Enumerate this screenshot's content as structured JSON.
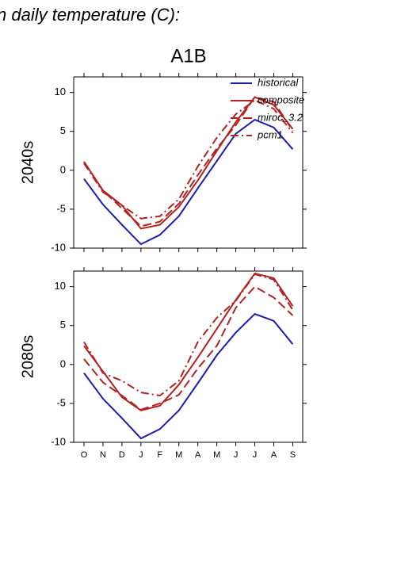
{
  "title": "n daily temperature (C):",
  "subtitle": "A1B",
  "chart_data": [
    {
      "type": "line",
      "ylabel": "2040s",
      "ylim": [
        -10,
        12
      ],
      "yticks": [
        -10,
        -5,
        0,
        5,
        10
      ],
      "legend": "upper right",
      "series": [
        {
          "name": "historical",
          "color": "#1c1cb0",
          "dash": "solid",
          "values": [
            -1.1,
            -4.4,
            -7.0,
            -9.5,
            -8.3,
            -5.9,
            -2.3,
            1.2,
            4.7,
            6.5,
            5.5,
            2.7
          ]
        },
        {
          "name": "composite",
          "color": "#b22222",
          "dash": "solid",
          "values": [
            1.1,
            -2.6,
            -4.5,
            -7.5,
            -7.0,
            -4.7,
            -1.3,
            2.5,
            6.2,
            9.4,
            8.4,
            5.3
          ]
        },
        {
          "name": "miroc_3.2",
          "color": "#b22222",
          "dash": "long",
          "values": [
            1.1,
            -2.6,
            -4.9,
            -7.2,
            -6.6,
            -4.3,
            -0.6,
            2.8,
            5.8,
            9.4,
            8.8,
            5.1
          ]
        },
        {
          "name": "pcm1",
          "color": "#b22222",
          "dash": "dashdot",
          "values": [
            0.9,
            -2.8,
            -4.5,
            -6.2,
            -5.9,
            -3.7,
            0.5,
            4.2,
            7.2,
            9.0,
            7.9,
            4.8
          ]
        }
      ]
    },
    {
      "type": "line",
      "ylabel": "2080s",
      "ylim": [
        -10,
        12
      ],
      "yticks": [
        -10,
        -5,
        0,
        5,
        10
      ],
      "categories": [
        "O",
        "N",
        "D",
        "J",
        "F",
        "M",
        "A",
        "M",
        "J",
        "J",
        "A",
        "S"
      ],
      "series": [
        {
          "color": "#1c1cb0",
          "dash": "solid",
          "values": [
            -1.1,
            -4.4,
            -6.9,
            -9.5,
            -8.3,
            -5.9,
            -2.4,
            1.2,
            4.1,
            6.5,
            5.6,
            2.6
          ]
        },
        {
          "color": "#b22222",
          "dash": "solid",
          "values": [
            2.4,
            -0.9,
            -4.2,
            -5.9,
            -5.3,
            -2.6,
            0.9,
            4.6,
            8.3,
            11.7,
            11.1,
            7.5
          ]
        },
        {
          "color": "#b22222",
          "dash": "long",
          "values": [
            0.7,
            -2.3,
            -4.0,
            -5.8,
            -5.0,
            -3.9,
            -0.5,
            2.4,
            7.3,
            10.0,
            8.6,
            6.3
          ]
        },
        {
          "color": "#b22222",
          "dash": "dashdot",
          "values": [
            2.9,
            -1.1,
            -2.1,
            -3.6,
            -4.0,
            -2.1,
            2.9,
            6.0,
            8.2,
            11.6,
            10.9,
            7.0
          ]
        }
      ]
    }
  ]
}
